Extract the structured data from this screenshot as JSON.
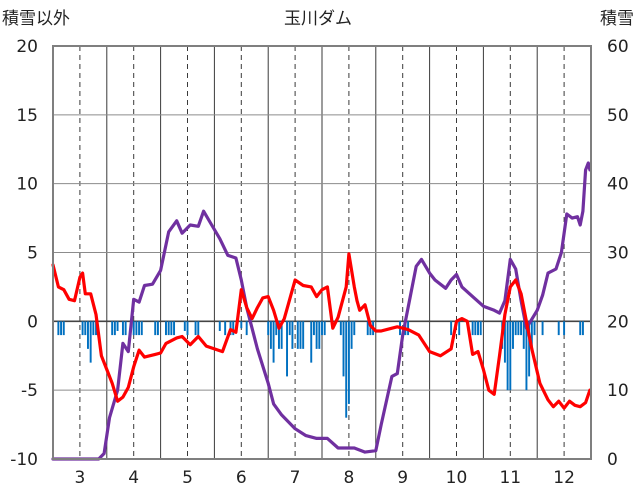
{
  "chart_data": {
    "type": "line",
    "title": "玉川ダム",
    "left_axis_label": "積雪以外",
    "right_axis_label": "積雪",
    "ylim_left": [
      -10,
      20
    ],
    "yticks_left": [
      -10,
      -5,
      0,
      5,
      10,
      15,
      20
    ],
    "ylim_right": [
      0,
      60
    ],
    "yticks_right": [
      0,
      10,
      20,
      30,
      40,
      50,
      60
    ],
    "xlim": [
      2.5,
      12.5
    ],
    "xticks": [
      3,
      4,
      5,
      6,
      7,
      8,
      9,
      10,
      11,
      12
    ],
    "xtick_labels": [
      "3",
      "4",
      "5",
      "6",
      "7",
      "8",
      "9",
      "10",
      "11",
      "12"
    ],
    "grid": true,
    "series": [
      {
        "color": "#7030a0",
        "axis": "left",
        "kind": "line",
        "points": [
          [
            2.5,
            -10
          ],
          [
            3.0,
            -10
          ],
          [
            3.35,
            -10
          ],
          [
            3.45,
            -9.6
          ],
          [
            3.55,
            -7
          ],
          [
            3.7,
            -5
          ],
          [
            3.8,
            -1.6
          ],
          [
            3.9,
            -2.2
          ],
          [
            4.0,
            1.6
          ],
          [
            4.1,
            1.4
          ],
          [
            4.2,
            2.6
          ],
          [
            4.35,
            2.7
          ],
          [
            4.5,
            3.7
          ],
          [
            4.65,
            6.5
          ],
          [
            4.8,
            7.3
          ],
          [
            4.9,
            6.4
          ],
          [
            5.05,
            7
          ],
          [
            5.2,
            6.9
          ],
          [
            5.3,
            8
          ],
          [
            5.45,
            7
          ],
          [
            5.6,
            6
          ],
          [
            5.75,
            4.8
          ],
          [
            5.9,
            4.6
          ],
          [
            6.0,
            3
          ],
          [
            6.1,
            1
          ],
          [
            6.3,
            -2
          ],
          [
            6.5,
            -4.5
          ],
          [
            6.6,
            -6
          ],
          [
            6.75,
            -6.8
          ],
          [
            7.0,
            -7.8
          ],
          [
            7.2,
            -8.3
          ],
          [
            7.4,
            -8.5
          ],
          [
            7.6,
            -8.5
          ],
          [
            7.8,
            -9.2
          ],
          [
            8.1,
            -9.2
          ],
          [
            8.3,
            -9.5
          ],
          [
            8.5,
            -9.4
          ],
          [
            8.6,
            -7.5
          ],
          [
            8.8,
            -4
          ],
          [
            8.9,
            -3.8
          ],
          [
            9.0,
            -1
          ],
          [
            9.15,
            2
          ],
          [
            9.25,
            4
          ],
          [
            9.35,
            4.5
          ],
          [
            9.5,
            3.5
          ],
          [
            9.6,
            3
          ],
          [
            9.8,
            2.4
          ],
          [
            9.9,
            3
          ],
          [
            10.0,
            3.4
          ],
          [
            10.1,
            2.5
          ],
          [
            10.3,
            1.8
          ],
          [
            10.5,
            1.1
          ],
          [
            10.7,
            0.8
          ],
          [
            10.8,
            0.6
          ],
          [
            10.9,
            1.5
          ],
          [
            11.0,
            4.5
          ],
          [
            11.1,
            3.8
          ],
          [
            11.2,
            1.5
          ],
          [
            11.3,
            -0.5
          ],
          [
            11.5,
            0.8
          ],
          [
            11.6,
            1.9
          ],
          [
            11.7,
            3.5
          ],
          [
            11.85,
            3.8
          ],
          [
            11.95,
            5
          ],
          [
            12.05,
            7.8
          ],
          [
            12.15,
            7.5
          ],
          [
            12.25,
            7.6
          ],
          [
            12.3,
            7
          ],
          [
            12.35,
            8
          ],
          [
            12.4,
            11
          ],
          [
            12.45,
            11.5
          ],
          [
            12.48,
            11
          ]
        ]
      },
      {
        "color": "#ff0000",
        "axis": "left",
        "kind": "line",
        "points": [
          [
            2.5,
            4.1
          ],
          [
            2.6,
            2.5
          ],
          [
            2.7,
            2.3
          ],
          [
            2.8,
            1.6
          ],
          [
            2.9,
            1.5
          ],
          [
            3.0,
            3.2
          ],
          [
            3.05,
            3.5
          ],
          [
            3.1,
            2
          ],
          [
            3.2,
            2
          ],
          [
            3.3,
            0.5
          ],
          [
            3.4,
            -2.5
          ],
          [
            3.5,
            -3.5
          ],
          [
            3.6,
            -4.5
          ],
          [
            3.7,
            -5.8
          ],
          [
            3.8,
            -5.5
          ],
          [
            3.9,
            -4.8
          ],
          [
            4.0,
            -3.3
          ],
          [
            4.1,
            -2.1
          ],
          [
            4.2,
            -2.6
          ],
          [
            4.4,
            -2.4
          ],
          [
            4.5,
            -2.3
          ],
          [
            4.6,
            -1.6
          ],
          [
            4.8,
            -1.2
          ],
          [
            4.9,
            -1.1
          ],
          [
            5.05,
            -1.7
          ],
          [
            5.2,
            -1.1
          ],
          [
            5.35,
            -1.8
          ],
          [
            5.5,
            -2
          ],
          [
            5.65,
            -2.2
          ],
          [
            5.8,
            -0.6
          ],
          [
            5.9,
            -0.8
          ],
          [
            6.0,
            2.3
          ],
          [
            6.1,
            1
          ],
          [
            6.2,
            0.2
          ],
          [
            6.3,
            1
          ],
          [
            6.4,
            1.7
          ],
          [
            6.5,
            1.8
          ],
          [
            6.6,
            0.8
          ],
          [
            6.7,
            -0.5
          ],
          [
            6.8,
            0.2
          ],
          [
            6.9,
            1.6
          ],
          [
            7.0,
            3
          ],
          [
            7.15,
            2.6
          ],
          [
            7.3,
            2.5
          ],
          [
            7.4,
            1.8
          ],
          [
            7.5,
            2.3
          ],
          [
            7.6,
            2.5
          ],
          [
            7.7,
            -0.5
          ],
          [
            7.8,
            0.3
          ],
          [
            7.95,
            2.5
          ],
          [
            8.0,
            4.9
          ],
          [
            8.1,
            2.5
          ],
          [
            8.15,
            1.5
          ],
          [
            8.2,
            0.8
          ],
          [
            8.3,
            1.2
          ],
          [
            8.4,
            -0.3
          ],
          [
            8.5,
            -0.7
          ],
          [
            8.6,
            -0.7
          ],
          [
            8.8,
            -0.5
          ],
          [
            8.9,
            -0.4
          ],
          [
            9.1,
            -0.6
          ],
          [
            9.3,
            -1
          ],
          [
            9.5,
            -2.2
          ],
          [
            9.7,
            -2.5
          ],
          [
            9.9,
            -2
          ],
          [
            10.0,
            0
          ],
          [
            10.1,
            0.2
          ],
          [
            10.2,
            0
          ],
          [
            10.3,
            -2.4
          ],
          [
            10.4,
            -2.2
          ],
          [
            10.5,
            -3.5
          ],
          [
            10.6,
            -5
          ],
          [
            10.7,
            -5.3
          ],
          [
            10.8,
            -2.5
          ],
          [
            10.9,
            0.5
          ],
          [
            11.0,
            2.5
          ],
          [
            11.1,
            3
          ],
          [
            11.2,
            2
          ],
          [
            11.3,
            0
          ],
          [
            11.4,
            -2
          ],
          [
            11.55,
            -4.5
          ],
          [
            11.7,
            -5.7
          ],
          [
            11.8,
            -6.2
          ],
          [
            11.9,
            -5.8
          ],
          [
            12.0,
            -6.3
          ],
          [
            12.1,
            -5.8
          ],
          [
            12.2,
            -6.1
          ],
          [
            12.3,
            -6.2
          ],
          [
            12.4,
            -5.9
          ],
          [
            12.48,
            -5.0
          ]
        ]
      },
      {
        "color": "#0070c0",
        "axis": "left",
        "kind": "bars",
        "values": [
          [
            2.6,
            -1
          ],
          [
            2.65,
            -1
          ],
          [
            2.7,
            -1
          ],
          [
            3.05,
            -1
          ],
          [
            3.1,
            -1
          ],
          [
            3.15,
            -2
          ],
          [
            3.2,
            -3
          ],
          [
            3.25,
            -1
          ],
          [
            3.3,
            -1
          ],
          [
            3.6,
            -1
          ],
          [
            3.65,
            -1
          ],
          [
            3.7,
            -0.7
          ],
          [
            3.8,
            -1
          ],
          [
            3.85,
            -1
          ],
          [
            4.0,
            -1
          ],
          [
            4.05,
            -1
          ],
          [
            4.1,
            -1
          ],
          [
            4.15,
            -1
          ],
          [
            4.4,
            -1
          ],
          [
            4.45,
            -1
          ],
          [
            4.6,
            -1
          ],
          [
            4.65,
            -1
          ],
          [
            4.7,
            -1
          ],
          [
            4.75,
            -1
          ],
          [
            4.95,
            -0.7
          ],
          [
            5.0,
            -1
          ],
          [
            5.15,
            -1
          ],
          [
            5.2,
            -1
          ],
          [
            5.6,
            -0.7
          ],
          [
            5.7,
            -1
          ],
          [
            5.8,
            -1
          ],
          [
            5.85,
            -1
          ],
          [
            6.0,
            -0.5
          ],
          [
            6.1,
            -1
          ],
          [
            6.5,
            -1
          ],
          [
            6.55,
            -2
          ],
          [
            6.6,
            -3
          ],
          [
            6.65,
            -1
          ],
          [
            6.7,
            -2
          ],
          [
            6.75,
            -2
          ],
          [
            6.85,
            -4
          ],
          [
            6.9,
            -1
          ],
          [
            6.95,
            -2
          ],
          [
            7.05,
            -2
          ],
          [
            7.1,
            -2
          ],
          [
            7.15,
            -2
          ],
          [
            7.3,
            -3
          ],
          [
            7.35,
            -1
          ],
          [
            7.4,
            -2
          ],
          [
            7.45,
            -2
          ],
          [
            7.5,
            -1
          ],
          [
            7.55,
            -1
          ],
          [
            7.85,
            -1
          ],
          [
            7.9,
            -4
          ],
          [
            7.95,
            -7
          ],
          [
            8.0,
            -6
          ],
          [
            8.05,
            -2
          ],
          [
            8.1,
            -1
          ],
          [
            8.35,
            -1
          ],
          [
            8.4,
            -1
          ],
          [
            8.45,
            -1
          ],
          [
            8.95,
            -1
          ],
          [
            9.05,
            -1
          ],
          [
            9.1,
            -1
          ],
          [
            9.9,
            -1
          ],
          [
            10.05,
            -1
          ],
          [
            10.3,
            -1
          ],
          [
            10.35,
            -1
          ],
          [
            10.4,
            -1
          ],
          [
            10.45,
            -1
          ],
          [
            10.85,
            -2
          ],
          [
            10.9,
            -3
          ],
          [
            10.95,
            -5
          ],
          [
            11.0,
            -5
          ],
          [
            11.05,
            -2
          ],
          [
            11.1,
            -1
          ],
          [
            11.15,
            -1
          ],
          [
            11.2,
            -1
          ],
          [
            11.25,
            -2
          ],
          [
            11.3,
            -5
          ],
          [
            11.35,
            -4
          ],
          [
            11.4,
            -2
          ],
          [
            11.45,
            -1
          ],
          [
            11.6,
            -1
          ],
          [
            11.9,
            -1
          ],
          [
            12.0,
            -1
          ],
          [
            12.3,
            -1
          ],
          [
            12.35,
            -1
          ]
        ]
      }
    ]
  }
}
